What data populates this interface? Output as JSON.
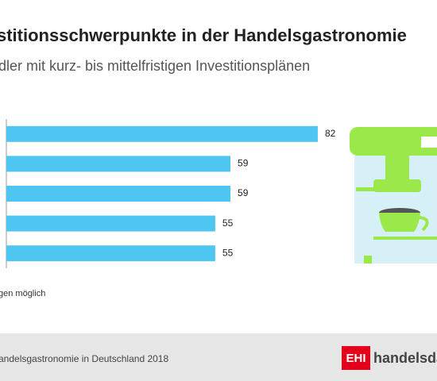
{
  "chart_data": {
    "type": "bar",
    "orientation": "horizontal",
    "title": "stitionsschwerpunkte in der Handelsgastronomie",
    "subtitle": "dler mit kurz- bis mittelfristigen Investitionsplänen",
    "categories": [
      null,
      null,
      null,
      null,
      null
    ],
    "values": [
      82,
      59,
      59,
      55,
      55
    ],
    "color": "#4fc6f2",
    "xlim": [
      0,
      100
    ],
    "footnote": "gen möglich",
    "source": "andelsgastronomie in Deutschland 2018",
    "logo": {
      "mark": "EHI",
      "text": "handelsdaten."
    }
  }
}
